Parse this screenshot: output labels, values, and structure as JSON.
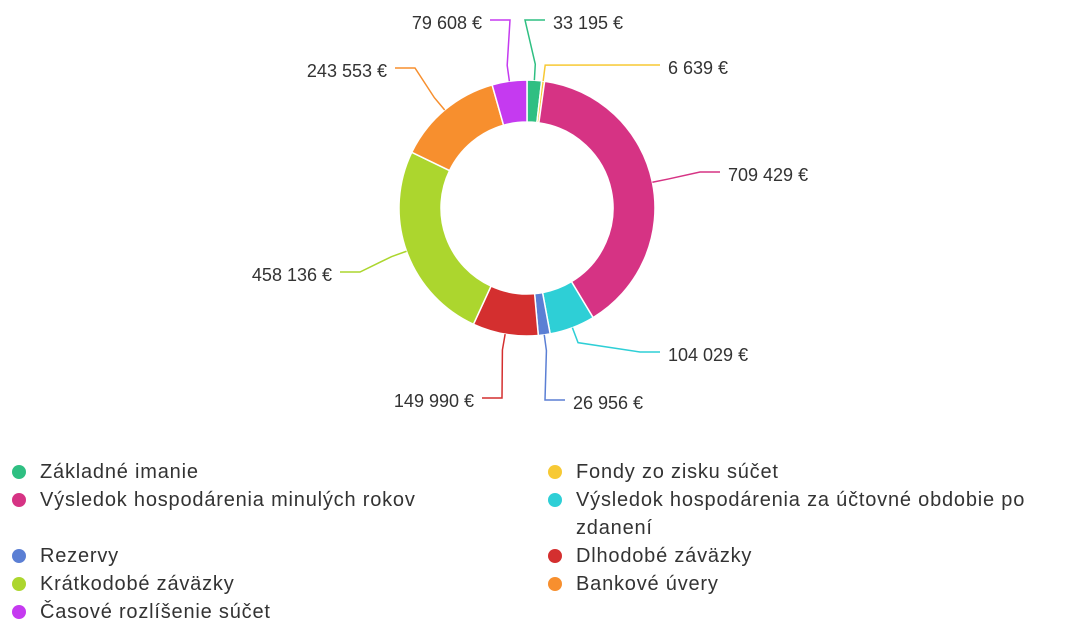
{
  "chart_data": {
    "type": "donut",
    "categories": [
      "Základné imanie",
      "Fondy zo zisku súčet",
      "Výsledok hospodárenia minulých rokov",
      "Výsledok hospodárenia za účtovné obdobie po zdanení",
      "Rezervy",
      "Dlhodobé záväzky",
      "Krátkodobé záväzky",
      "Bankové úvery",
      "Časové rozlíšenie súčet"
    ],
    "values": [
      33195,
      6639,
      709429,
      104029,
      26956,
      149990,
      458136,
      243553,
      79608
    ],
    "value_labels": [
      "33 195 €",
      "6 639 €",
      "709 429 €",
      "104 029 €",
      "26 956 €",
      "149 990 €",
      "458 136 €",
      "243 553 €",
      "79 608 €"
    ],
    "colors": [
      "#2fbf82",
      "#f7c934",
      "#d63384",
      "#2ecfd6",
      "#5b7fd4",
      "#d42f2f",
      "#acd62e",
      "#f78f2e",
      "#c53af0"
    ],
    "legend": "bottom"
  }
}
